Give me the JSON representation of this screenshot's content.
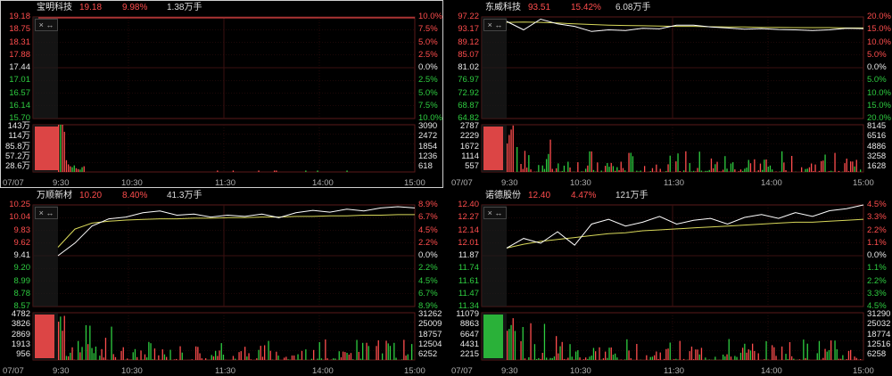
{
  "colors": {
    "up": "#ff4d4d",
    "down": "#2ecc40",
    "price_line": "#ffffff",
    "avg_line": "#d8d85a",
    "grid": "#3a1010",
    "border": "#5a1a1a"
  },
  "icons": {
    "close": "close-icon",
    "expand": "expand-arrows-icon"
  },
  "time_labels": [
    "07/07",
    "9:30",
    "10:30",
    "11:30",
    "14:00",
    "15:00"
  ],
  "panels": [
    {
      "id": "p1",
      "name": "宝明科技",
      "price": "19.18",
      "pct": "9.98%",
      "volume": "1.38万手",
      "price_ticks_left": [
        "19.18",
        "18.75",
        "18.31",
        "17.88",
        "17.44",
        "17.01",
        "16.57",
        "16.14",
        "15.70"
      ],
      "price_ticks_right": [
        "10.0%",
        "7.5%",
        "5.0%",
        "2.5%",
        "0.0%",
        "2.5%",
        "5.0%",
        "7.5%",
        "10.0%"
      ],
      "vol_ticks_left": [
        "143万",
        "114万",
        "85.8万",
        "57.2万",
        "28.6万"
      ],
      "vol_ticks_right": [
        "3090",
        "2472",
        "1854",
        "1236",
        "618"
      ],
      "chart_data": {
        "type": "line",
        "x_range": [
          "9:30",
          "15:00"
        ],
        "y_range": [
          15.7,
          19.18
        ],
        "price": [
          19.18,
          19.18
        ],
        "volume_bars_relative": [
          1.0,
          1.0,
          1.0,
          0.85,
          0.25,
          0.16,
          0.12,
          0.1,
          0.14,
          0.08,
          0.06,
          0.05,
          0.1,
          0.12
        ]
      }
    },
    {
      "id": "p2",
      "name": "东威科技",
      "price": "93.51",
      "pct": "15.42%",
      "volume": "6.08万手",
      "price_ticks_left": [
        "97.22",
        "93.17",
        "89.12",
        "85.07",
        "81.02",
        "76.97",
        "72.92",
        "68.87",
        "64.82"
      ],
      "price_ticks_right": [
        "20.0%",
        "15.0%",
        "10.0%",
        "5.0%",
        "0.0%",
        "5.0%",
        "10.0%",
        "15.0%",
        "20.0%"
      ],
      "vol_ticks_left": [
        "2787",
        "2229",
        "1672",
        "1114",
        "557"
      ],
      "vol_ticks_right": [
        "8145",
        "6516",
        "4886",
        "3258",
        "1628"
      ],
      "chart_data": {
        "type": "line",
        "x_range": [
          "9:30",
          "15:00"
        ],
        "y_range": [
          64.82,
          97.22
        ],
        "price": [
          95.8,
          93.1,
          96.5,
          95.0,
          94.2,
          92.6,
          93.1,
          92.9,
          93.6,
          93.4,
          94.6,
          94.6,
          94.0,
          93.7,
          93.3,
          93.5,
          93.2,
          93.1,
          92.9,
          93.1,
          93.6,
          93.5
        ],
        "avg": [
          95.5,
          95.6,
          95.5,
          95.3,
          95.0,
          94.8,
          94.6,
          94.5,
          94.4,
          94.3,
          94.2,
          94.2,
          94.1,
          94.0,
          94.0,
          93.9,
          93.9,
          93.8,
          93.8,
          93.8,
          93.7,
          93.7
        ]
      }
    },
    {
      "id": "p3",
      "name": "万顺新材",
      "price": "10.20",
      "pct": "8.40%",
      "volume": "41.3万手",
      "price_ticks_left": [
        "10.25",
        "10.04",
        "9.83",
        "9.62",
        "9.41",
        "9.20",
        "8.99",
        "8.78",
        "8.57"
      ],
      "price_ticks_right": [
        "8.9%",
        "6.7%",
        "4.5%",
        "2.2%",
        "0.0%",
        "2.2%",
        "4.5%",
        "6.7%",
        "8.9%"
      ],
      "vol_ticks_left": [
        "4782",
        "3826",
        "2869",
        "1913",
        "956"
      ],
      "vol_ticks_right": [
        "31262",
        "25009",
        "18757",
        "12504",
        "6252"
      ],
      "chart_data": {
        "type": "line",
        "x_range": [
          "9:30",
          "15:00"
        ],
        "y_range": [
          8.57,
          10.25
        ],
        "price": [
          9.41,
          9.62,
          9.9,
          10.02,
          10.05,
          10.12,
          10.15,
          10.08,
          10.1,
          10.05,
          10.08,
          10.06,
          10.1,
          10.04,
          10.12,
          10.16,
          10.13,
          10.18,
          10.15,
          10.2,
          10.22,
          10.2
        ],
        "avg": [
          9.55,
          9.85,
          9.95,
          9.98,
          10.0,
          10.01,
          10.02,
          10.02,
          10.03,
          10.03,
          10.04,
          10.04,
          10.05,
          10.05,
          10.06,
          10.06,
          10.07,
          10.07,
          10.08,
          10.08,
          10.09,
          10.09
        ]
      }
    },
    {
      "id": "p4",
      "name": "诺德股份",
      "price": "12.40",
      "pct": "4.47%",
      "volume": "121万手",
      "price_ticks_left": [
        "12.40",
        "12.27",
        "12.14",
        "12.01",
        "11.87",
        "11.74",
        "11.61",
        "11.47",
        "11.34"
      ],
      "price_ticks_right": [
        "4.5%",
        "3.3%",
        "2.2%",
        "1.1%",
        "0.0%",
        "1.1%",
        "2.2%",
        "3.3%",
        "4.5%"
      ],
      "vol_ticks_left": [
        "11079",
        "8863",
        "6647",
        "4431",
        "2215"
      ],
      "vol_ticks_right": [
        "31290",
        "25032",
        "18774",
        "12516",
        "6258"
      ],
      "chart_data": {
        "type": "line",
        "x_range": [
          "9:30",
          "15:00"
        ],
        "y_range": [
          11.34,
          12.4
        ],
        "price": [
          11.95,
          12.05,
          12.0,
          12.12,
          11.98,
          12.2,
          12.25,
          12.18,
          12.22,
          12.28,
          12.2,
          12.24,
          12.26,
          12.2,
          12.27,
          12.3,
          12.26,
          12.32,
          12.28,
          12.34,
          12.36,
          12.4
        ],
        "avg": [
          11.95,
          11.99,
          12.02,
          12.04,
          12.06,
          12.08,
          12.1,
          12.11,
          12.13,
          12.14,
          12.15,
          12.16,
          12.17,
          12.18,
          12.19,
          12.2,
          12.21,
          12.22,
          12.22,
          12.23,
          12.24,
          12.25
        ]
      }
    }
  ]
}
